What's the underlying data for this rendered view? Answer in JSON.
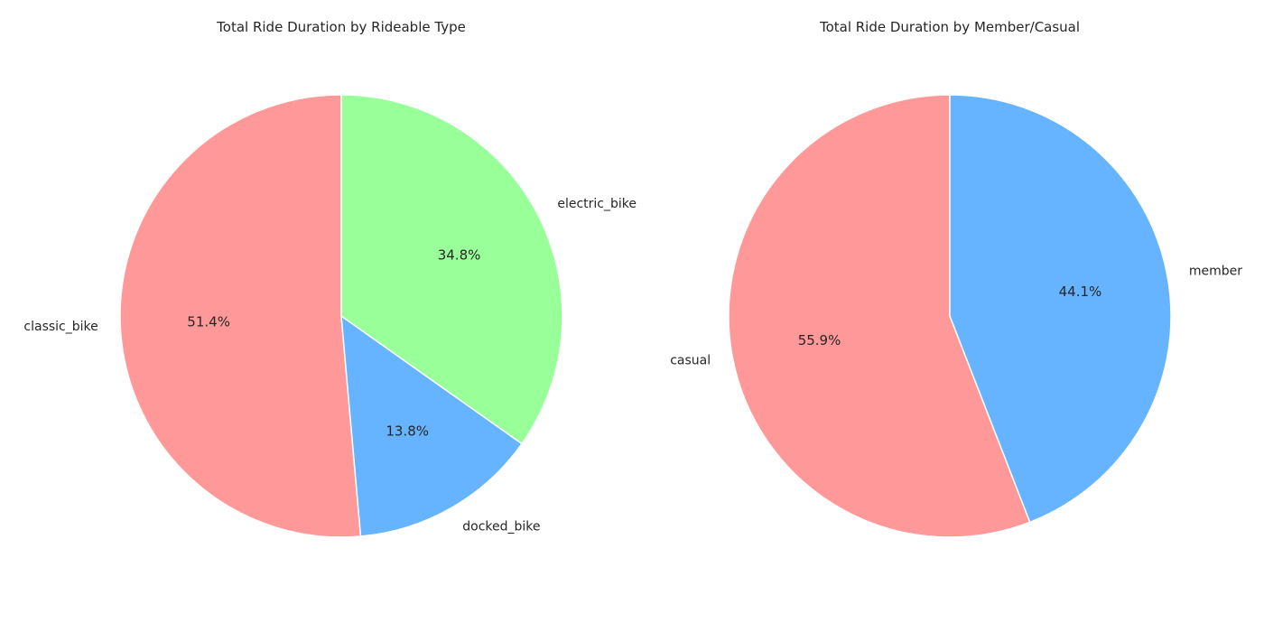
{
  "chart_data": [
    {
      "type": "pie",
      "title": "Total Ride Duration by Rideable Type",
      "labels": [
        "classic_bike",
        "docked_bike",
        "electric_bike"
      ],
      "values": [
        51.4,
        13.8,
        34.8
      ],
      "value_labels": [
        "51.4%",
        "13.8%",
        "34.8%"
      ],
      "colors": [
        "#ff9999",
        "#66b3ff",
        "#99ff99"
      ],
      "start_angle": 90,
      "direction": "counterclockwise"
    },
    {
      "type": "pie",
      "title": "Total Ride Duration by Member/Casual",
      "labels": [
        "casual",
        "member"
      ],
      "values": [
        55.9,
        44.1
      ],
      "value_labels": [
        "55.9%",
        "44.1%"
      ],
      "colors": [
        "#ff9999",
        "#66b3ff"
      ],
      "start_angle": 90,
      "direction": "counterclockwise"
    }
  ]
}
